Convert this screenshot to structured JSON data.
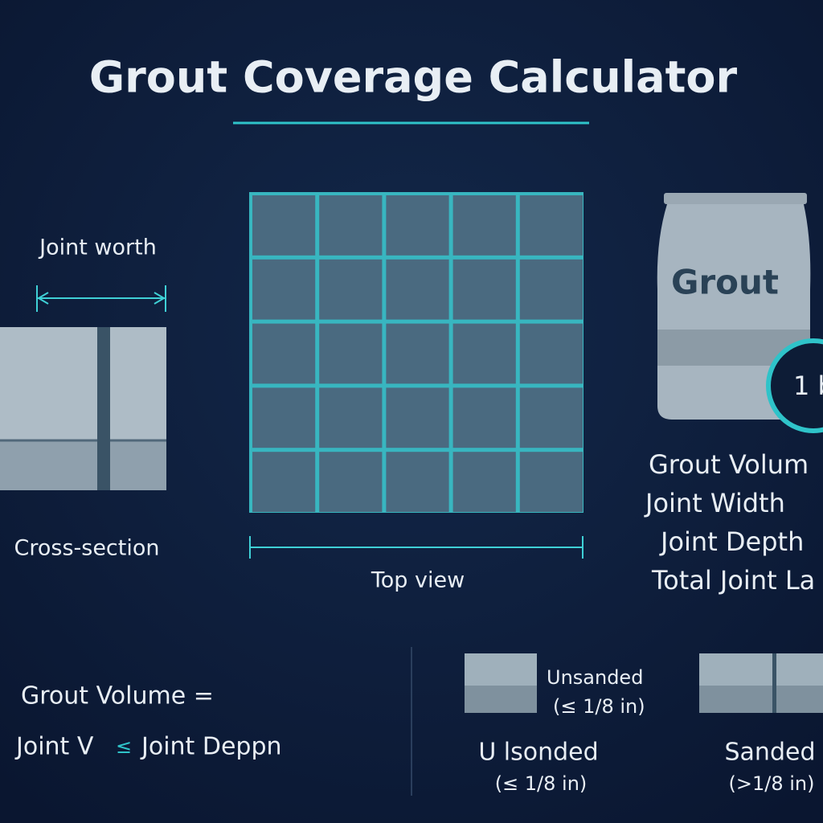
{
  "header": {
    "title": "Grout Coverage Calculator"
  },
  "cross_section": {
    "label": "Joint worth",
    "caption": "Cross-section"
  },
  "top_view": {
    "caption": "Top view"
  },
  "bag": {
    "label": "Grout",
    "badge": "1 b",
    "lines": [
      "Grout Volum",
      "Joint Width",
      "Joint Depth",
      "Total Joint La"
    ]
  },
  "formula": {
    "line1": "Grout Volume =",
    "line2": [
      "Joint V",
      "≤",
      "Joint Deppn"
    ]
  },
  "grout_types": {
    "swatch_label": "Unsanded",
    "swatch_range": "(≤ 1/8 in)",
    "items": [
      {
        "label": "U lsonded",
        "range": "(≤ 1/8 in)"
      },
      {
        "label": "Sanded",
        "range": "(>1/8 in)"
      }
    ]
  }
}
